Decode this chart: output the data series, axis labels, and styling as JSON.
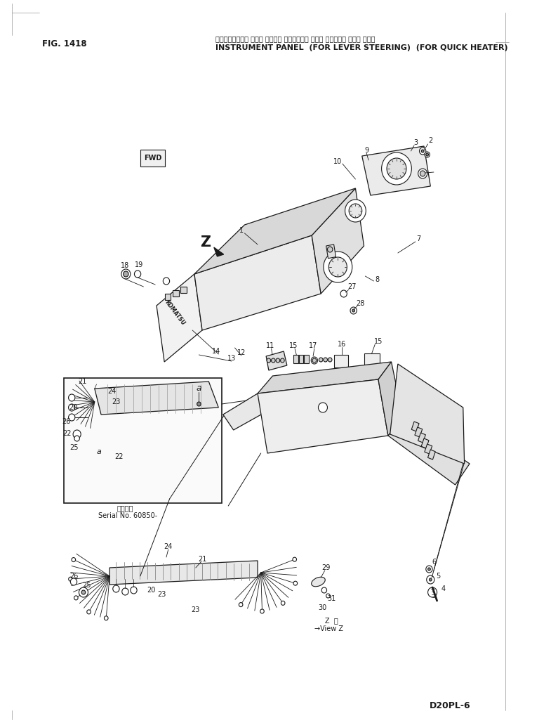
{
  "fig_label": "FIG. 1418",
  "title_jp": "インスゥルメント パネル （レバー ステアリング ヨウ） （クイック ヒータ ヨウ）",
  "title_en": "INSTRUMENT PANEL  (FOR LEVER STEERING)  (FOR QUICK HEATER)",
  "model": "D20PL-6",
  "bg_color": "#ffffff",
  "line_color": "#1a1a1a",
  "serial_note_jp": "通用序号",
  "serial_note_en": "Serial No. 60850-",
  "border_tick_color": "#888888"
}
